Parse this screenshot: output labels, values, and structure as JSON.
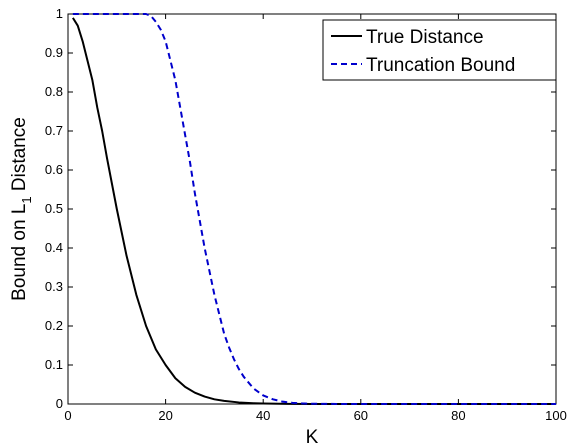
{
  "chart_data": {
    "type": "line",
    "xlabel": "K",
    "ylabel": {
      "prefix": "Bound on L",
      "subscript": "1",
      "suffix": " Distance"
    },
    "xlim": [
      0,
      100
    ],
    "ylim": [
      0,
      1
    ],
    "xticks": [
      0,
      20,
      40,
      60,
      80,
      100
    ],
    "yticks": [
      0,
      0.1,
      0.2,
      0.3,
      0.4,
      0.5,
      0.6,
      0.7,
      0.8,
      0.9,
      1
    ],
    "ytick_labels": [
      "0",
      "0.1",
      "0.2",
      "0.3",
      "0.4",
      "0.5",
      "0.6",
      "0.7",
      "0.8",
      "0.9",
      "1"
    ],
    "grid": false,
    "legend_position": "top-right",
    "series": [
      {
        "name": "True Distance",
        "color": "#000000",
        "style": "solid",
        "x": [
          1,
          2,
          3,
          4,
          5,
          6,
          7,
          8,
          10,
          12,
          14,
          16,
          18,
          20,
          22,
          24,
          26,
          28,
          30,
          32,
          35,
          38,
          40,
          45,
          50,
          60,
          70,
          80,
          90,
          100
        ],
        "y": [
          0.99,
          0.97,
          0.93,
          0.88,
          0.83,
          0.76,
          0.7,
          0.63,
          0.5,
          0.38,
          0.28,
          0.2,
          0.14,
          0.1,
          0.066,
          0.044,
          0.029,
          0.019,
          0.012,
          0.008,
          0.004,
          0.002,
          0.0013,
          0.0004,
          0.0001,
          0,
          0,
          0,
          0,
          0
        ]
      },
      {
        "name": "Truncation Bound",
        "color": "#0000cc",
        "style": "dashed",
        "x": [
          1,
          5,
          10,
          14,
          16,
          17,
          18,
          19,
          20,
          21,
          22,
          23,
          24,
          25,
          26,
          27,
          28,
          29,
          30,
          31,
          32,
          33,
          34,
          35,
          36,
          38,
          40,
          42,
          44,
          46,
          48,
          50,
          52,
          55,
          60,
          70,
          80,
          90,
          100
        ],
        "y": [
          1,
          1,
          1,
          1,
          1,
          0.995,
          0.98,
          0.96,
          0.93,
          0.88,
          0.83,
          0.76,
          0.69,
          0.62,
          0.54,
          0.47,
          0.4,
          0.34,
          0.28,
          0.23,
          0.18,
          0.145,
          0.115,
          0.09,
          0.07,
          0.04,
          0.022,
          0.012,
          0.006,
          0.003,
          0.0015,
          0.0007,
          0.0003,
          0.0001,
          0,
          0,
          0,
          0,
          0
        ]
      }
    ]
  }
}
